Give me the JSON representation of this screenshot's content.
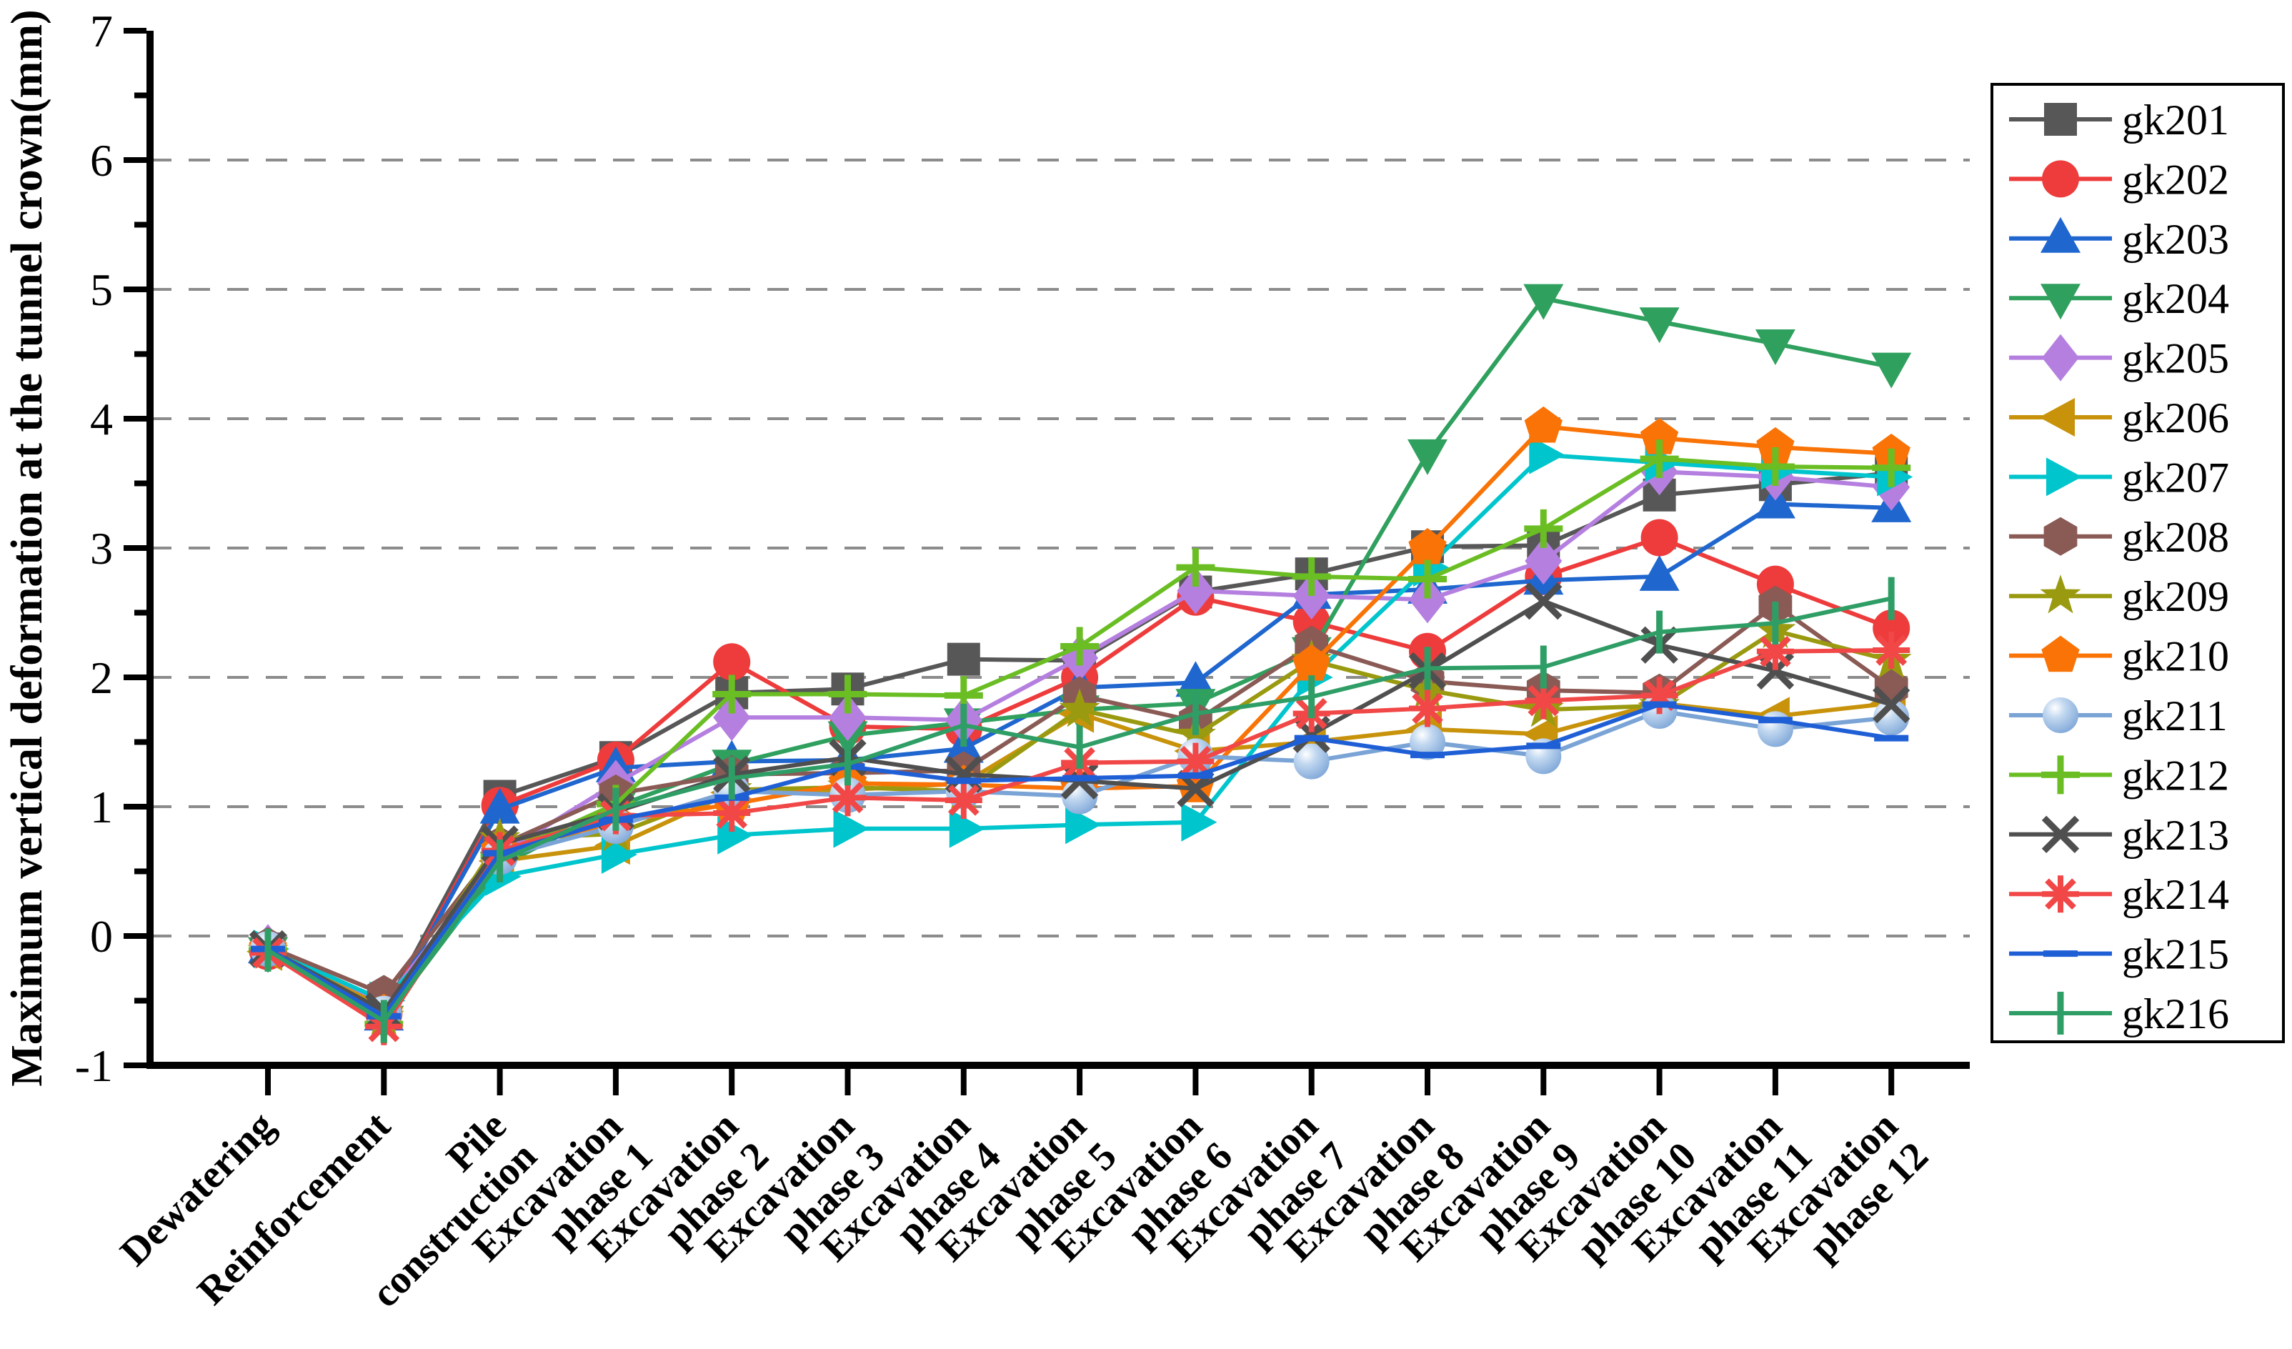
{
  "chart_data": {
    "type": "line",
    "title": "",
    "ylabel": "Maximum vertical deformation at the tunnel crown(mm)",
    "xlabel": "",
    "ylim": [
      -1,
      7
    ],
    "ytick_step": 1,
    "yminor_step": 0.5,
    "grid": "horizontal dashed gridlines at integer values 0 to 6",
    "grid_color": "#8c8c8c",
    "legend_position": "right-outside box",
    "categories": [
      "Dewatering",
      "Reinforcement",
      "Pile\nconstruction",
      "Excavation\nphase 1",
      "Excavation\nphase 2",
      "Excavation\nphase 3",
      "Excavation\nphase 4",
      "Excavation\nphase 5",
      "Excavation\nphase 6",
      "Excavation\nphase 7",
      "Excavation\nphase 8",
      "Excavation\nphase 9",
      "Excavation\nphase 10",
      "Excavation\nphase 11",
      "Excavation\nphase 12"
    ],
    "series": [
      {
        "name": "gk201",
        "color": "#575757",
        "marker": "square",
        "values": [
          -0.1,
          -0.58,
          1.08,
          1.38,
          1.88,
          1.91,
          2.14,
          2.13,
          2.66,
          2.8,
          3.01,
          3.02,
          3.41,
          3.49,
          3.58
        ]
      },
      {
        "name": "gk202",
        "color": "#ee3b3b",
        "marker": "circle",
        "values": [
          -0.12,
          -0.6,
          1.01,
          1.36,
          2.12,
          1.62,
          1.6,
          2.0,
          2.62,
          2.43,
          2.2,
          2.78,
          3.08,
          2.72,
          2.38
        ]
      },
      {
        "name": "gk203",
        "color": "#1f66cf",
        "marker": "triangle-up",
        "values": [
          -0.1,
          -0.62,
          0.98,
          1.3,
          1.35,
          1.36,
          1.45,
          1.92,
          1.96,
          2.64,
          2.68,
          2.75,
          2.78,
          3.34,
          3.31
        ]
      },
      {
        "name": "gk204",
        "color": "#2fa05e",
        "marker": "triangle-down",
        "values": [
          -0.12,
          -0.65,
          0.54,
          1.0,
          1.33,
          1.55,
          1.65,
          1.75,
          1.8,
          2.2,
          3.73,
          4.93,
          4.75,
          4.58,
          4.4
        ]
      },
      {
        "name": "gk205",
        "color": "#b57fe0",
        "marker": "diamond",
        "values": [
          -0.09,
          -0.52,
          0.63,
          1.18,
          1.69,
          1.69,
          1.67,
          2.15,
          2.67,
          2.63,
          2.6,
          2.9,
          3.59,
          3.55,
          3.47
        ]
      },
      {
        "name": "gk206",
        "color": "#c8930b",
        "marker": "triangle-left",
        "values": [
          -0.12,
          -0.55,
          0.58,
          0.7,
          1.11,
          1.13,
          1.18,
          1.72,
          1.43,
          1.5,
          1.6,
          1.56,
          1.8,
          1.7,
          1.8
        ]
      },
      {
        "name": "gk207",
        "color": "#00c5cd",
        "marker": "triangle-right",
        "values": [
          -0.1,
          -0.5,
          0.46,
          0.63,
          0.78,
          0.83,
          0.83,
          0.86,
          0.88,
          2.0,
          2.85,
          3.72,
          3.66,
          3.6,
          3.55
        ]
      },
      {
        "name": "gk208",
        "color": "#8a5a55",
        "marker": "hexagon",
        "values": [
          -0.08,
          -0.45,
          0.7,
          1.1,
          1.25,
          1.26,
          1.28,
          1.86,
          1.66,
          2.25,
          1.97,
          1.9,
          1.88,
          2.56,
          1.92
        ]
      },
      {
        "name": "gk209",
        "color": "#9a9a10",
        "marker": "star",
        "values": [
          -0.12,
          -0.63,
          0.75,
          0.79,
          1.13,
          1.15,
          1.12,
          1.75,
          1.55,
          2.13,
          1.9,
          1.75,
          1.78,
          2.36,
          2.13
        ]
      },
      {
        "name": "gk210",
        "color": "#f97306",
        "marker": "pentagon",
        "values": [
          -0.1,
          -0.6,
          0.66,
          0.88,
          1.02,
          1.18,
          1.17,
          1.14,
          1.16,
          2.1,
          3.0,
          3.94,
          3.85,
          3.78,
          3.73
        ]
      },
      {
        "name": "gk211",
        "color": "#7aa3d6",
        "marker": "sphere",
        "values": [
          -0.1,
          -0.6,
          0.61,
          0.85,
          1.12,
          1.09,
          1.12,
          1.08,
          1.39,
          1.35,
          1.5,
          1.39,
          1.74,
          1.6,
          1.69
        ]
      },
      {
        "name": "gk212",
        "color": "#6abe23",
        "marker": "plus",
        "values": [
          -0.11,
          -0.68,
          0.62,
          1.02,
          1.87,
          1.87,
          1.86,
          2.24,
          2.85,
          2.78,
          2.76,
          3.15,
          3.69,
          3.63,
          3.62
        ]
      },
      {
        "name": "gk213",
        "color": "#4f4f4f",
        "marker": "x",
        "values": [
          -0.1,
          -0.58,
          0.71,
          0.96,
          1.25,
          1.38,
          1.25,
          1.2,
          1.14,
          1.56,
          2.05,
          2.59,
          2.25,
          2.05,
          1.79
        ]
      },
      {
        "name": "gk214",
        "color": "#f14747",
        "marker": "asterisk",
        "values": [
          -0.13,
          -0.7,
          0.66,
          0.93,
          0.95,
          1.07,
          1.05,
          1.34,
          1.35,
          1.72,
          1.76,
          1.82,
          1.86,
          2.2,
          2.21
        ]
      },
      {
        "name": "gk215",
        "color": "#1f5fd6",
        "marker": "hline",
        "values": [
          -0.1,
          -0.62,
          0.64,
          0.9,
          1.07,
          1.31,
          1.2,
          1.22,
          1.24,
          1.53,
          1.4,
          1.47,
          1.79,
          1.67,
          1.53
        ]
      },
      {
        "name": "gk216",
        "color": "#2f9e66",
        "marker": "vline",
        "values": [
          -0.11,
          -0.66,
          0.58,
          0.98,
          1.22,
          1.33,
          1.63,
          1.46,
          1.72,
          1.85,
          2.07,
          2.08,
          2.35,
          2.42,
          2.61
        ]
      }
    ]
  }
}
